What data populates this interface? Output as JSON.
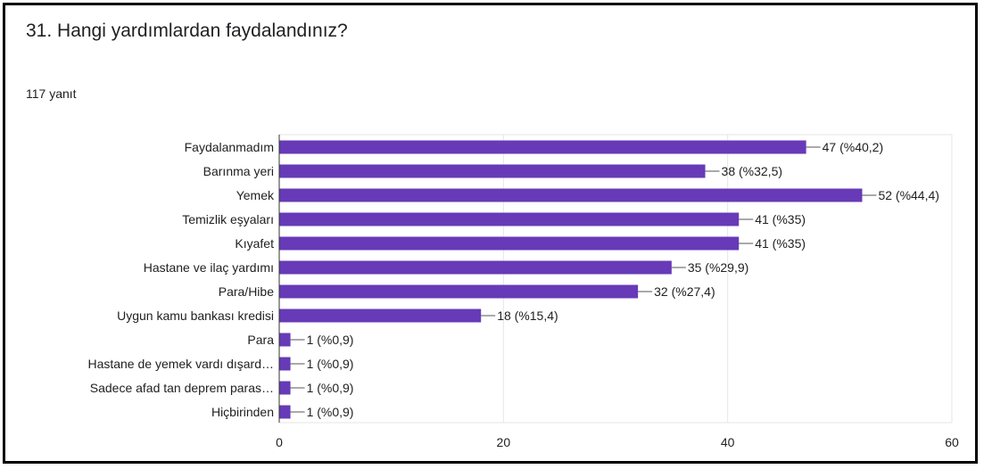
{
  "question": {
    "title": "31. Hangi yardımlardan faydalandınız?",
    "response_count": "117 yanıt"
  },
  "colors": {
    "bar": "#673ab7",
    "grid": "#e6e6e6",
    "text": "#202124",
    "frame": "#000000"
  },
  "chart_data": {
    "type": "bar",
    "orientation": "horizontal",
    "categories": [
      "Faydalanmadım",
      "Barınma yeri",
      "Yemek",
      "Temizlik eşyaları",
      "Kıyafet",
      "Hastane ve ilaç yardımı",
      "Para/Hibe",
      "Uygun kamu bankası kredisi",
      "Para",
      "Hastane de yemek vardı dışard…",
      "Sadece afad tan deprem paras…",
      "Hiçbirinden"
    ],
    "values": [
      47,
      38,
      52,
      41,
      41,
      35,
      32,
      18,
      1,
      1,
      1,
      1
    ],
    "data_labels": [
      "47 (%40,2)",
      "38 (%32,5)",
      "52 (%44,4)",
      "41 (%35)",
      "41 (%35)",
      "35 (%29,9)",
      "32 (%27,4)",
      "18 (%15,4)",
      "1 (%0,9)",
      "1 (%0,9)",
      "1 (%0,9)",
      "1 (%0,9)"
    ],
    "xlim": [
      0,
      60
    ],
    "x_ticks": [
      0,
      20,
      40,
      60
    ],
    "grid": true
  }
}
